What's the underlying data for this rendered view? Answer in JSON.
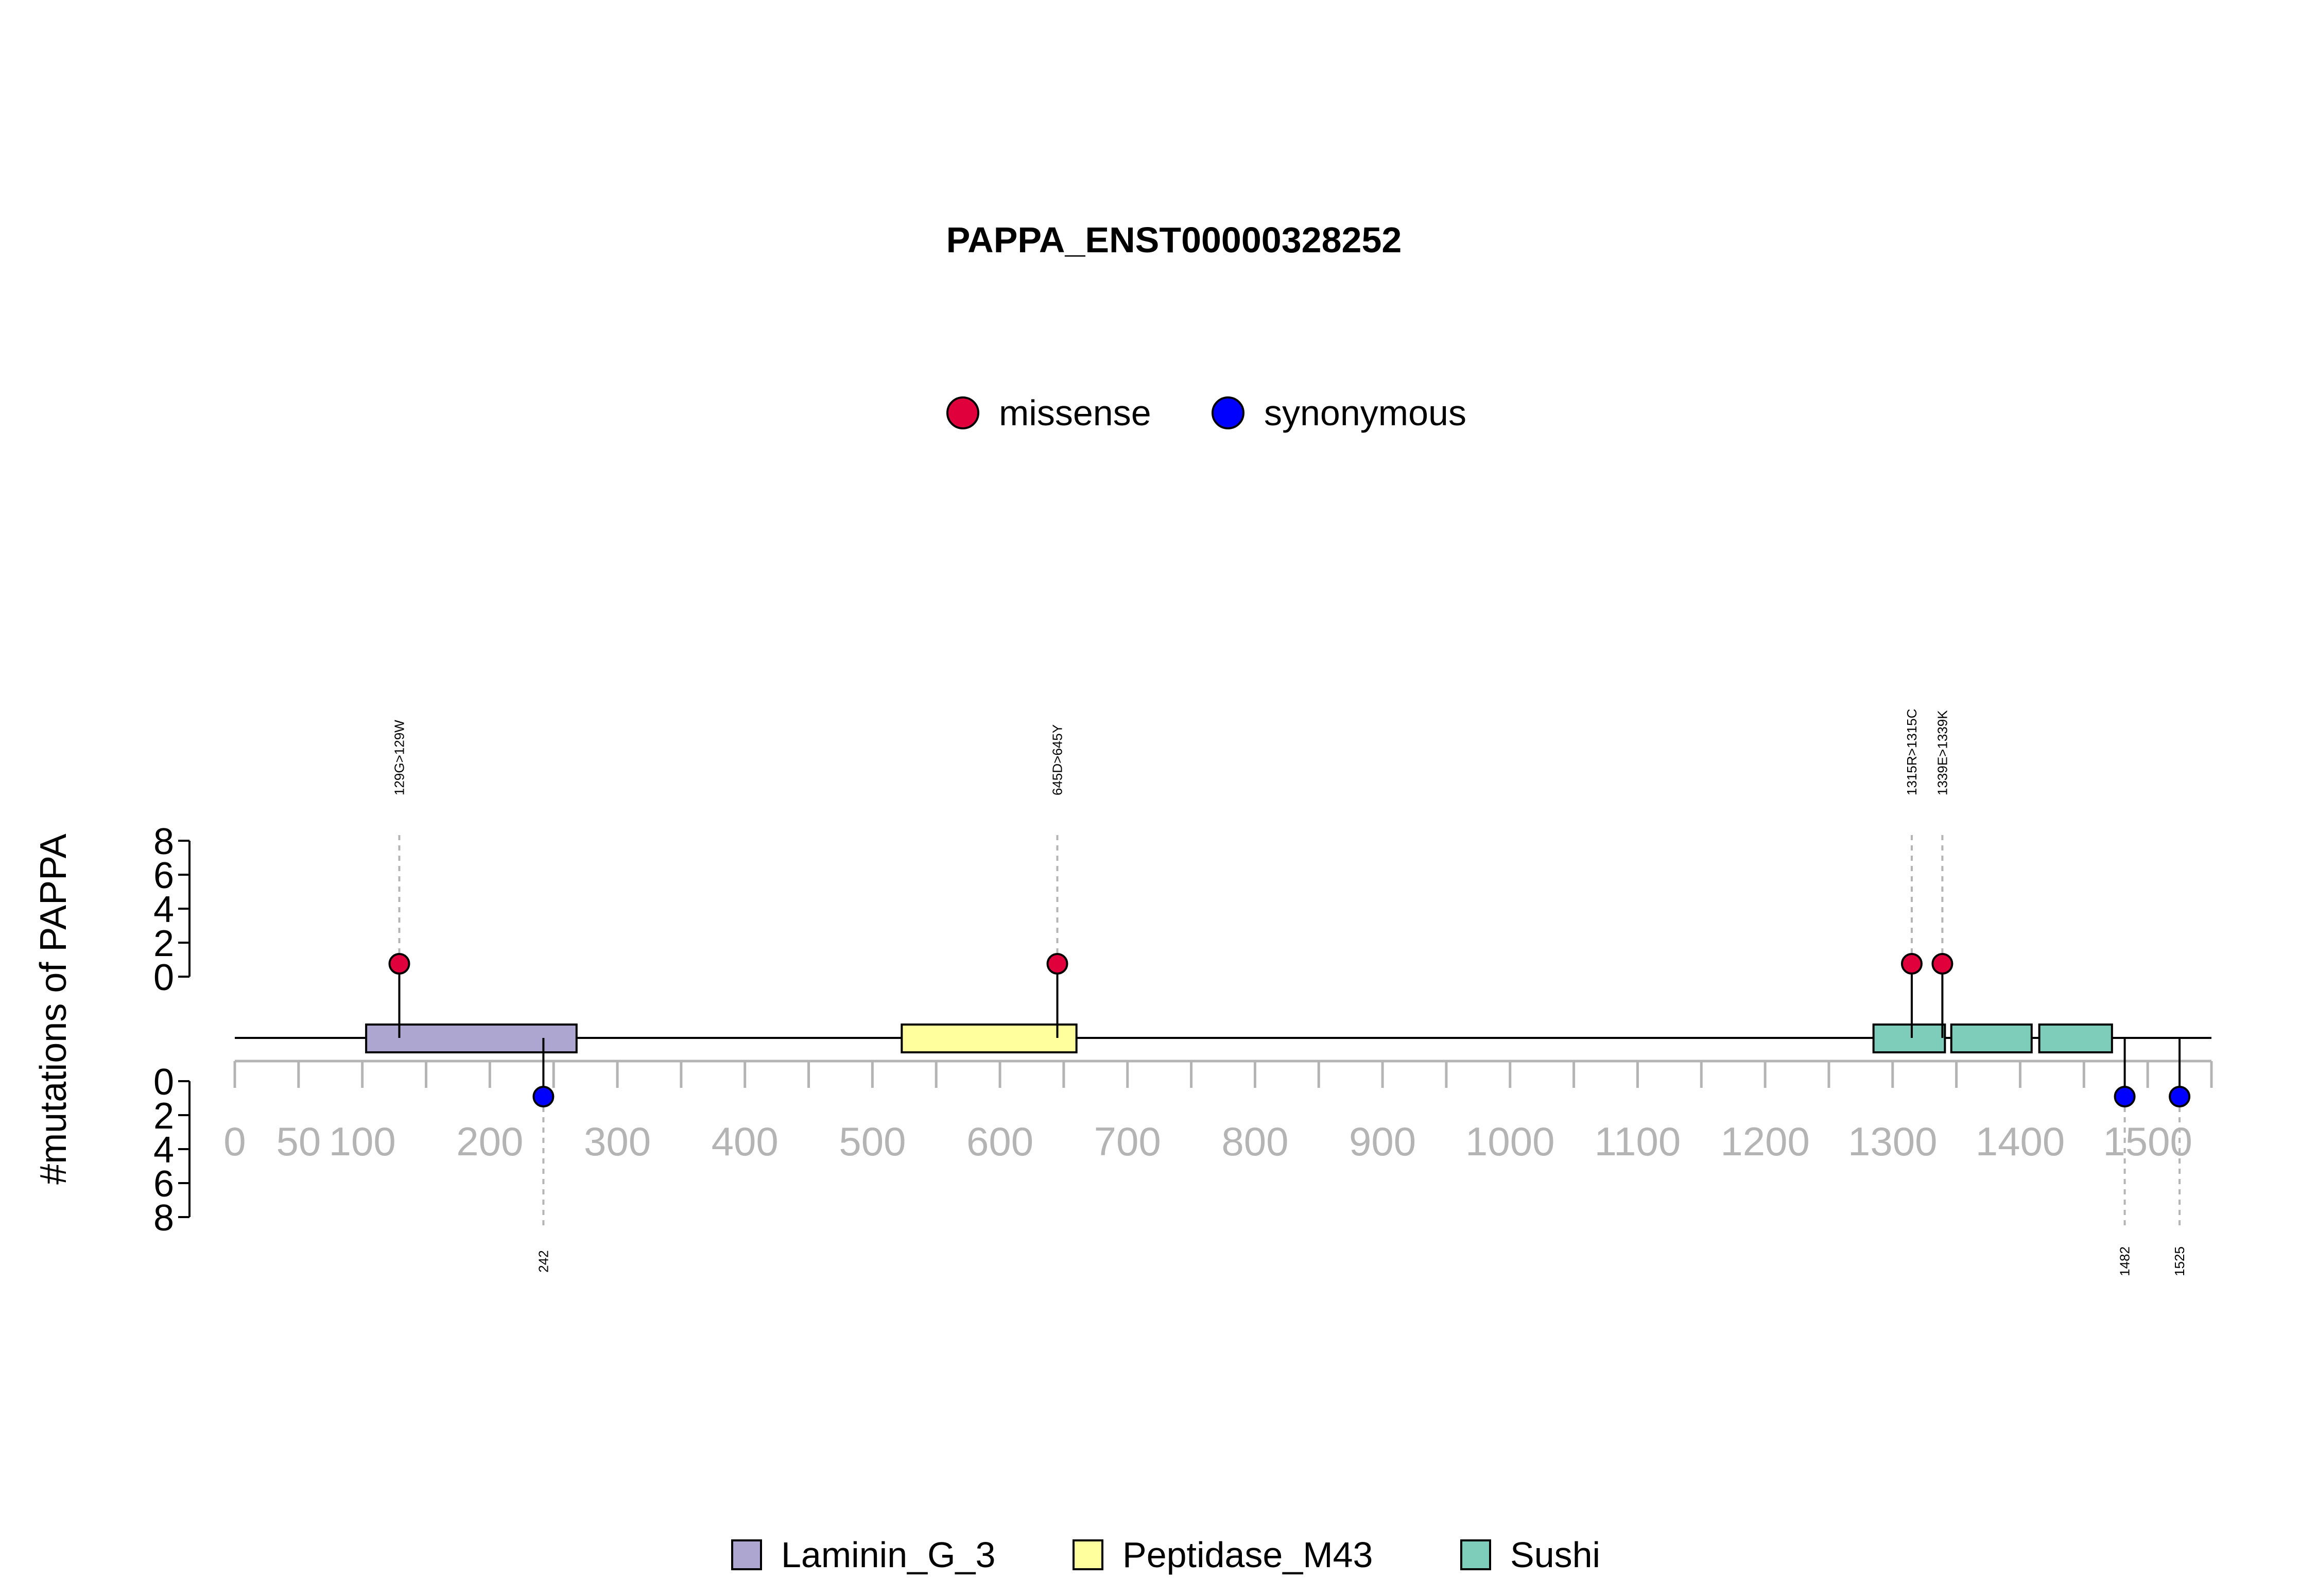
{
  "chart_data": {
    "type": "lollipop",
    "title": "PAPPA_ENST00000328252",
    "ylabel": "#mutations of PAPPA",
    "protein_length": 1550,
    "x_ticks": [
      0,
      50,
      100,
      150,
      200,
      250,
      300,
      350,
      400,
      450,
      500,
      550,
      600,
      650,
      700,
      750,
      800,
      850,
      900,
      950,
      1000,
      1050,
      1100,
      1150,
      1200,
      1250,
      1300,
      1350,
      1400,
      1450,
      1500,
      1550
    ],
    "x_tick_labels": [
      {
        "value": 0,
        "label": "0"
      },
      {
        "value": 50,
        "label": "50"
      },
      {
        "value": 100,
        "label": "100"
      },
      {
        "value": 200,
        "label": "200"
      },
      {
        "value": 300,
        "label": "300"
      },
      {
        "value": 400,
        "label": "400"
      },
      {
        "value": 500,
        "label": "500"
      },
      {
        "value": 600,
        "label": "600"
      },
      {
        "value": 700,
        "label": "700"
      },
      {
        "value": 800,
        "label": "800"
      },
      {
        "value": 900,
        "label": "900"
      },
      {
        "value": 1000,
        "label": "1000"
      },
      {
        "value": 1100,
        "label": "1100"
      },
      {
        "value": 1200,
        "label": "1200"
      },
      {
        "value": 1300,
        "label": "1300"
      },
      {
        "value": 1400,
        "label": "1400"
      },
      {
        "value": 1500,
        "label": "1500"
      }
    ],
    "y_ticks_top": [
      0,
      2,
      4,
      6,
      8
    ],
    "y_ticks_bottom": [
      0,
      2,
      4,
      6,
      8
    ],
    "legend_mutation_types": [
      {
        "name": "missense",
        "color": "#e0003c"
      },
      {
        "name": "synonymous",
        "color": "#0000ff"
      }
    ],
    "domains": [
      {
        "name": "Laminin_G_3",
        "start": 103,
        "end": 268,
        "color": "#ada6d1"
      },
      {
        "name": "Peptidase_M43",
        "start": 523,
        "end": 660,
        "color": "#ffff9e"
      },
      {
        "name": "Sushi",
        "start": 1285,
        "end": 1341,
        "color": "#7ecdbb"
      },
      {
        "name": "Sushi",
        "start": 1346,
        "end": 1409,
        "color": "#7ecdbb"
      },
      {
        "name": "Sushi",
        "start": 1415,
        "end": 1472,
        "color": "#7ecdbb"
      }
    ],
    "legend_domains": [
      {
        "name": "Laminin_G_3",
        "color": "#ada6d1"
      },
      {
        "name": "Peptidase_M43",
        "color": "#ffff9e"
      },
      {
        "name": "Sushi",
        "color": "#7ecdbb"
      }
    ],
    "mutations": [
      {
        "position": 129,
        "label": "129G>129W",
        "type": "missense",
        "count": 1,
        "side": "top"
      },
      {
        "position": 645,
        "label": "645D>645Y",
        "type": "missense",
        "count": 1,
        "side": "top"
      },
      {
        "position": 1315,
        "label": "1315R>1315C",
        "type": "missense",
        "count": 1,
        "side": "top"
      },
      {
        "position": 1339,
        "label": "1339E>1339K",
        "type": "missense",
        "count": 1,
        "side": "top"
      },
      {
        "position": 242,
        "label": "242",
        "type": "synonymous",
        "count": 1,
        "side": "bottom"
      },
      {
        "position": 1482,
        "label": "1482",
        "type": "synonymous",
        "count": 1,
        "side": "bottom"
      },
      {
        "position": 1525,
        "label": "1525",
        "type": "synonymous",
        "count": 1,
        "side": "bottom"
      }
    ]
  }
}
